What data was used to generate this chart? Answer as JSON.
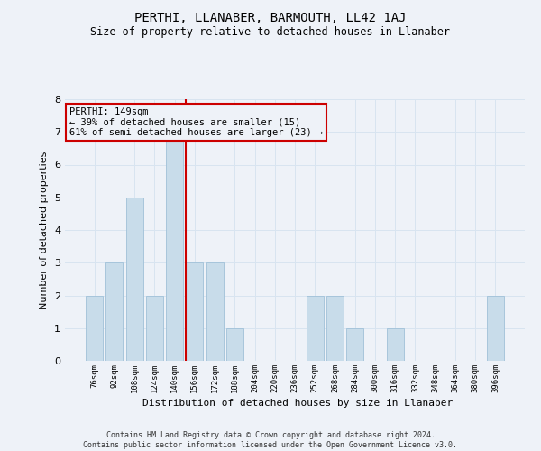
{
  "title": "PERTHI, LLANABER, BARMOUTH, LL42 1AJ",
  "subtitle": "Size of property relative to detached houses in Llanaber",
  "xlabel": "Distribution of detached houses by size in Llanaber",
  "ylabel": "Number of detached properties",
  "footer_line1": "Contains HM Land Registry data © Crown copyright and database right 2024.",
  "footer_line2": "Contains public sector information licensed under the Open Government Licence v3.0.",
  "categories": [
    "76sqm",
    "92sqm",
    "108sqm",
    "124sqm",
    "140sqm",
    "156sqm",
    "172sqm",
    "188sqm",
    "204sqm",
    "220sqm",
    "236sqm",
    "252sqm",
    "268sqm",
    "284sqm",
    "300sqm",
    "316sqm",
    "332sqm",
    "348sqm",
    "364sqm",
    "380sqm",
    "396sqm"
  ],
  "values": [
    2,
    3,
    5,
    2,
    7,
    3,
    3,
    1,
    0,
    0,
    0,
    2,
    2,
    1,
    0,
    1,
    0,
    0,
    0,
    0,
    2
  ],
  "bar_color": "#c8dcea",
  "bar_edge_color": "#a0c0d8",
  "grid_color": "#d8e4f0",
  "background_color": "#eef2f8",
  "annotation_box_text": "PERTHI: 149sqm\n← 39% of detached houses are smaller (15)\n61% of semi-detached houses are larger (23) →",
  "annotation_box_color": "#cc0000",
  "ylim": [
    0,
    8
  ],
  "yticks": [
    0,
    1,
    2,
    3,
    4,
    5,
    6,
    7,
    8
  ],
  "title_fontsize": 10,
  "subtitle_fontsize": 8.5,
  "ylabel_fontsize": 8,
  "xlabel_fontsize": 8,
  "footer_fontsize": 6,
  "annot_fontsize": 7.5,
  "xtick_fontsize": 6.5,
  "ytick_fontsize": 8
}
